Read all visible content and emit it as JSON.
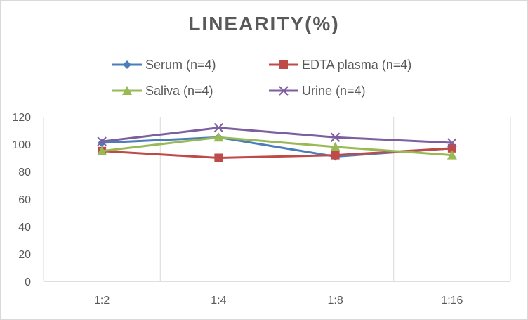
{
  "chart_data": {
    "type": "line",
    "title": "LINEARITY(%)",
    "xlabel": "",
    "ylabel": "",
    "categories": [
      "1:2",
      "1:4",
      "1:8",
      "1:16"
    ],
    "ylim": [
      0,
      120
    ],
    "yticks": [
      0,
      20,
      40,
      60,
      80,
      100,
      120
    ],
    "grid": "vertical",
    "legend_position": "top",
    "series": [
      {
        "name": "Serum (n=4)",
        "values": [
          101,
          105,
          91,
          97
        ],
        "color": "#4a7ebb",
        "marker": "diamond"
      },
      {
        "name": "EDTA plasma (n=4)",
        "values": [
          95,
          90,
          92,
          97
        ],
        "color": "#be4b48",
        "marker": "square"
      },
      {
        "name": "Saliva (n=4)",
        "values": [
          95,
          105,
          98,
          92
        ],
        "color": "#98b954",
        "marker": "triangle"
      },
      {
        "name": "Urine (n=4)",
        "values": [
          102,
          112,
          105,
          101
        ],
        "color": "#7d5fa0",
        "marker": "x"
      }
    ]
  }
}
